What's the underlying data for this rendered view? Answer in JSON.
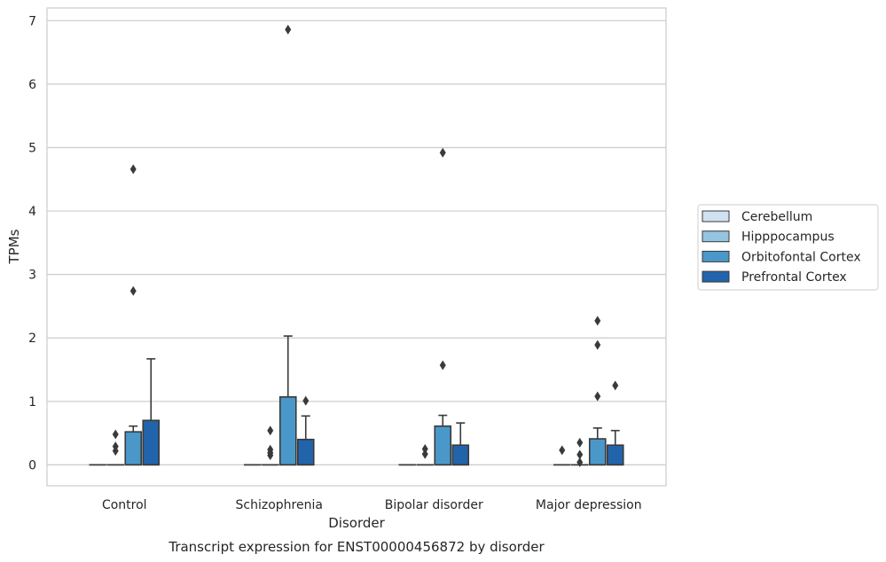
{
  "caption": "Transcript expression for ENST00000456872 by disorder",
  "chart_data": {
    "type": "box",
    "title": "",
    "xlabel": "Disorder",
    "ylabel": "TPMs",
    "ylim": [
      -0.33,
      7.2
    ],
    "yticks": [
      0,
      1,
      2,
      3,
      4,
      5,
      6,
      7
    ],
    "grid": true,
    "legend_position": "right",
    "categories": [
      "Control",
      "Schizophrenia",
      "Bipolar disorder",
      "Major depression"
    ],
    "series": [
      {
        "name": "Cerebellum",
        "color": "#d0e1f2",
        "boxes": [
          {
            "q1": 0,
            "median": 0,
            "q3": 0,
            "whisker_low": 0,
            "whisker_high": 0,
            "outliers": []
          },
          {
            "q1": 0,
            "median": 0,
            "q3": 0,
            "whisker_low": 0,
            "whisker_high": 0,
            "outliers": []
          },
          {
            "q1": 0,
            "median": 0,
            "q3": 0,
            "whisker_low": 0,
            "whisker_high": 0,
            "outliers": []
          },
          {
            "q1": 0,
            "median": 0,
            "q3": 0,
            "whisker_low": 0,
            "whisker_high": 0,
            "outliers": [
              0.23
            ]
          }
        ]
      },
      {
        "name": "Hipppocampus",
        "color": "#94c4df",
        "boxes": [
          {
            "q1": 0,
            "median": 0,
            "q3": 0,
            "whisker_low": 0,
            "whisker_high": 0,
            "outliers": [
              0.48,
              0.29,
              0.22
            ]
          },
          {
            "q1": 0,
            "median": 0,
            "q3": 0,
            "whisker_low": 0,
            "whisker_high": 0,
            "outliers": [
              0.19,
              0.54,
              0.24,
              0.15
            ]
          },
          {
            "q1": 0,
            "median": 0,
            "q3": 0,
            "whisker_low": 0,
            "whisker_high": 0,
            "outliers": [
              0.25,
              0.17
            ]
          },
          {
            "q1": 0,
            "median": 0,
            "q3": 0,
            "whisker_low": 0,
            "whisker_high": 0,
            "outliers": [
              0.35,
              0.16,
              0.04
            ]
          }
        ]
      },
      {
        "name": "Orbitofontal Cortex",
        "color": "#4a98c9",
        "boxes": [
          {
            "q1": 0,
            "median": 0,
            "q3": 0.52,
            "whisker_low": 0,
            "whisker_high": 0.61,
            "outliers": [
              4.66,
              2.74
            ]
          },
          {
            "q1": 0,
            "median": 0,
            "q3": 1.07,
            "whisker_low": 0,
            "whisker_high": 2.03,
            "outliers": [
              6.86
            ]
          },
          {
            "q1": 0,
            "median": 0,
            "q3": 0.61,
            "whisker_low": 0,
            "whisker_high": 0.78,
            "outliers": [
              4.92,
              1.57
            ]
          },
          {
            "q1": 0,
            "median": 0,
            "q3": 0.41,
            "whisker_low": 0,
            "whisker_high": 0.58,
            "outliers": [
              2.27,
              1.89,
              1.08
            ]
          }
        ]
      },
      {
        "name": "Prefrontal Cortex",
        "color": "#2164ab",
        "boxes": [
          {
            "q1": 0,
            "median": 0,
            "q3": 0.7,
            "whisker_low": 0,
            "whisker_high": 1.67,
            "outliers": []
          },
          {
            "q1": 0,
            "median": 0,
            "q3": 0.4,
            "whisker_low": 0,
            "whisker_high": 0.77,
            "outliers": [
              1.01
            ]
          },
          {
            "q1": 0,
            "median": 0,
            "q3": 0.31,
            "whisker_low": 0,
            "whisker_high": 0.66,
            "outliers": []
          },
          {
            "q1": 0,
            "median": 0,
            "q3": 0.31,
            "whisker_low": 0,
            "whisker_high": 0.54,
            "outliers": [
              1.25
            ]
          }
        ]
      }
    ]
  }
}
